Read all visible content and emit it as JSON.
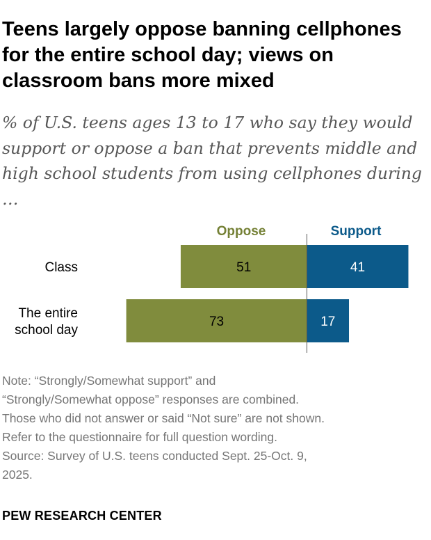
{
  "title": "Teens largely oppose banning cellphones for the entire school day; views on classroom bans more mixed",
  "subtitle": "% of U.S. teens ages 13 to 17 who say they would support or oppose a ban that prevents middle and high school students from using cellphones during …",
  "chart_data": {
    "type": "bar",
    "orientation": "horizontal-diverging",
    "categories": [
      "Class",
      "The entire school day"
    ],
    "series": [
      {
        "name": "Oppose",
        "values": [
          51,
          73
        ],
        "color": "#808c3d",
        "label_color": "#758136",
        "direction": "left"
      },
      {
        "name": "Support",
        "values": [
          41,
          17
        ],
        "color": "#0c5a8a",
        "label_color": "#0c5a8a",
        "direction": "right"
      }
    ],
    "value_labels": true,
    "grid": false,
    "legend": "top"
  },
  "notes": [
    "Note: “Strongly/Somewhat support” and",
    "“Strongly/Somewhat oppose” responses are combined.",
    "Those who did not answer or said “Not sure” are not shown.",
    "Refer to the questionnaire for full question wording.",
    "Source: Survey of U.S. teens conducted Sept. 25-Oct. 9,",
    "2025."
  ],
  "footer": "PEW RESEARCH CENTER"
}
